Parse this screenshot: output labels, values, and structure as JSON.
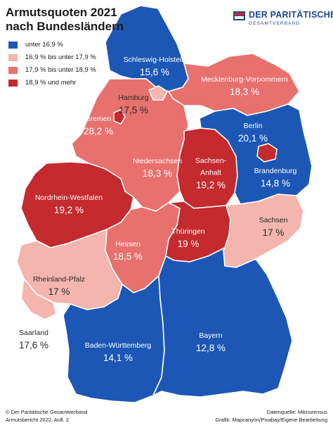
{
  "title": {
    "line1": "Armutsquoten 2021",
    "line2": "nach Bundesländern"
  },
  "logo": {
    "main": "DER PARITÄTISCHE",
    "sub": "GESAMTVERBAND",
    "color": "#1b4a8e",
    "accent": "#d7262e"
  },
  "legend": [
    {
      "label": "unter 16,9 %",
      "color": "#1c57b5"
    },
    {
      "label": "16,9 % bis unter 17,9  %",
      "color": "#f3b5ad"
    },
    {
      "label": "17,9 % bis unter 18,9 %",
      "color": "#e8706d"
    },
    {
      "label": "18,9 % und mehr",
      "color": "#c42a2e"
    }
  ],
  "states": [
    {
      "id": "schleswig-holstein",
      "name": "Schleswig-Holstein",
      "value": "15,6 %",
      "class": 0
    },
    {
      "id": "hamburg",
      "name": "Hamburg",
      "value": "17,5 %",
      "class": 1
    },
    {
      "id": "mecklenburg-vorpommern",
      "name": "Mecklenburg-Vorpommern",
      "value": "18,3 %",
      "class": 2
    },
    {
      "id": "bremen",
      "name": "Bremen",
      "value": "28,2 %",
      "class": 3
    },
    {
      "id": "berlin",
      "name": "Berlin",
      "value": "20,1 %",
      "class": 3
    },
    {
      "id": "niedersachsen",
      "name": "Niedersachsen",
      "value": "18,3 %",
      "class": 2
    },
    {
      "id": "sachsen-anhalt",
      "name": "Sachsen-\nAnhalt",
      "value": "19,2 %",
      "class": 3
    },
    {
      "id": "brandenburg",
      "name": "Brandenburg",
      "value": "14,8 %",
      "class": 0
    },
    {
      "id": "nordrhein-westfalen",
      "name": "Nordrhein-Westfalen",
      "value": "19,2 %",
      "class": 3
    },
    {
      "id": "thueringen",
      "name": "Thüringen",
      "value": "19 %",
      "class": 3
    },
    {
      "id": "sachsen",
      "name": "Sachsen",
      "value": "17 %",
      "class": 1
    },
    {
      "id": "hessen",
      "name": "Hessen",
      "value": "18,5 %",
      "class": 2
    },
    {
      "id": "rheinland-pfalz",
      "name": "Rheinland-Pfalz",
      "value": "17 %",
      "class": 1
    },
    {
      "id": "saarland",
      "name": "Saarland",
      "value": "17,6 %",
      "class": 1
    },
    {
      "id": "bayern",
      "name": "Bayern",
      "value": "12,8 %",
      "class": 0
    },
    {
      "id": "baden-wuerttemberg",
      "name": "Baden-Württemberg",
      "value": "14,1 %",
      "class": 0
    }
  ],
  "footer": {
    "left1": "© Der Paritätische Gesamtverband",
    "left2": "Armutsbericht 2022, Aufl. 2",
    "right1": "Datenquelle: Mikrozensus",
    "right2": "Grafik: Mapcanyon/Pixabay/Eigene Bearbeitung"
  }
}
